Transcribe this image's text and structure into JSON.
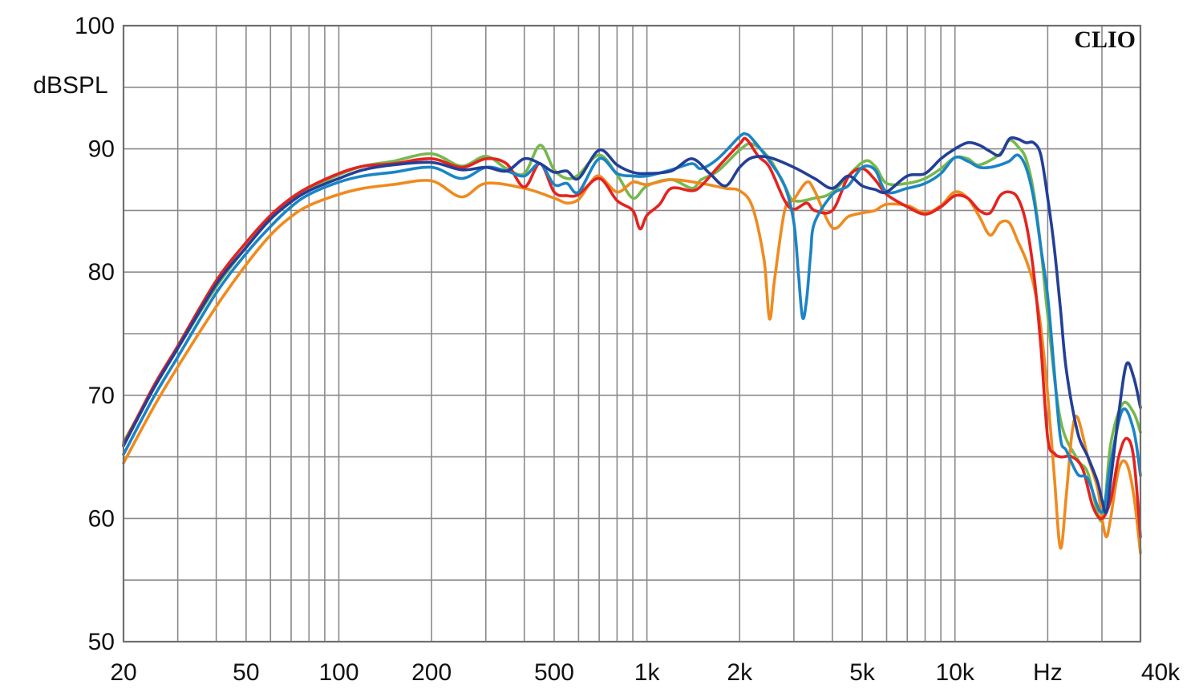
{
  "watermark": "CLIO",
  "chart_data": {
    "type": "line",
    "title": "",
    "xlabel": "",
    "ylabel": "dBSPL",
    "x_scale": "log",
    "xlim": [
      20,
      40000
    ],
    "ylim": [
      50,
      100
    ],
    "grid": true,
    "y_ticks": [
      50,
      60,
      70,
      80,
      90,
      100
    ],
    "y_tick_labels": [
      "50",
      "60",
      "70",
      "80",
      "90",
      "100"
    ],
    "x_tick_values": [
      20,
      50,
      100,
      200,
      500,
      1000,
      2000,
      5000,
      10000,
      20000,
      40000
    ],
    "x_tick_labels": [
      "20",
      "50",
      "100",
      "200",
      "500",
      "1k",
      "2k",
      "5k",
      "10k",
      "Hz",
      "40k"
    ],
    "series": [
      {
        "color": "#77b84e",
        "x": [
          20,
          25,
          30,
          40,
          50,
          60,
          70,
          80,
          100,
          120,
          150,
          200,
          250,
          300,
          350,
          400,
          450,
          500,
          550,
          600,
          700,
          800,
          900,
          1000,
          1200,
          1400,
          1500,
          1700,
          2000,
          2200,
          2500,
          2800,
          3000,
          3500,
          4000,
          5000,
          5500,
          6000,
          7000,
          8000,
          9000,
          10000,
          11000,
          12000,
          14000,
          15000,
          16000,
          17000,
          18000,
          19000,
          20000,
          22000,
          25000,
          27000,
          30000,
          32000,
          35000,
          38000,
          40000
        ],
        "values": [
          66.2,
          70.5,
          73.8,
          78.8,
          82.0,
          84.3,
          85.7,
          86.7,
          87.9,
          88.6,
          89.0,
          89.6,
          88.6,
          89.4,
          88.4,
          88.0,
          90.3,
          88.3,
          87.6,
          87.9,
          89.5,
          87.9,
          86.0,
          87.0,
          87.5,
          86.8,
          87.5,
          88.2,
          89.9,
          90.4,
          89.2,
          87.0,
          85.8,
          86.0,
          86.5,
          88.9,
          88.6,
          87.2,
          87.2,
          87.6,
          88.4,
          89.3,
          89.2,
          88.7,
          89.6,
          90.7,
          90.2,
          89.2,
          86.5,
          82.0,
          76.5,
          68.0,
          64.8,
          63.7,
          59.8,
          66.0,
          69.3,
          68.6,
          67.0
        ]
      },
      {
        "color": "#ef8b1f",
        "x": [
          20,
          25,
          30,
          40,
          50,
          60,
          70,
          80,
          100,
          120,
          150,
          200,
          250,
          300,
          400,
          500,
          550,
          600,
          650,
          700,
          800,
          900,
          1000,
          1200,
          1500,
          1800,
          2000,
          2200,
          2400,
          2500,
          2600,
          2800,
          3000,
          3300,
          3500,
          4000,
          4500,
          5000,
          5500,
          6000,
          7000,
          8000,
          9000,
          10000,
          11000,
          12000,
          13000,
          14000,
          15000,
          16000,
          17000,
          18000,
          19000,
          20000,
          21000,
          22000,
          23000,
          24000,
          25000,
          27000,
          29000,
          30000,
          31000,
          32000,
          34000,
          36000,
          38000,
          40000
        ],
        "values": [
          64.5,
          69.0,
          72.3,
          77.2,
          80.6,
          83.0,
          84.5,
          85.4,
          86.3,
          86.8,
          87.1,
          87.4,
          86.1,
          87.2,
          86.8,
          86.0,
          85.6,
          85.9,
          87.1,
          87.8,
          86.5,
          87.3,
          87.1,
          87.5,
          87.2,
          86.8,
          86.6,
          85.3,
          81.0,
          76.2,
          79.5,
          85.0,
          85.9,
          87.3,
          86.6,
          83.6,
          84.5,
          84.8,
          85.0,
          85.5,
          85.4,
          84.8,
          85.4,
          86.5,
          86.0,
          84.5,
          83.0,
          84.0,
          84.0,
          82.5,
          81.0,
          79.0,
          75.5,
          70.0,
          63.5,
          57.6,
          62.0,
          67.0,
          68.2,
          65.0,
          62.5,
          60.0,
          58.5,
          60.0,
          64.0,
          64.5,
          62.0,
          57.2
        ]
      },
      {
        "color": "#e4231f",
        "x": [
          20,
          25,
          30,
          40,
          50,
          60,
          70,
          80,
          100,
          120,
          150,
          200,
          250,
          300,
          350,
          400,
          450,
          500,
          550,
          600,
          700,
          800,
          900,
          950,
          1000,
          1100,
          1200,
          1400,
          1500,
          1700,
          2000,
          2100,
          2300,
          2500,
          2800,
          3000,
          3300,
          3500,
          4000,
          4500,
          5000,
          5500,
          6000,
          7000,
          8000,
          9000,
          10000,
          11000,
          12000,
          13000,
          14000,
          15000,
          16000,
          17000,
          18000,
          19000,
          20000,
          21000,
          22000,
          24000,
          26000,
          28000,
          30000,
          32000,
          34000,
          36000,
          38000,
          40000
        ],
        "values": [
          66.0,
          70.7,
          74.0,
          79.3,
          82.4,
          84.6,
          86.0,
          86.9,
          88.0,
          88.6,
          88.8,
          89.2,
          88.5,
          89.2,
          88.8,
          86.9,
          88.8,
          86.5,
          86.2,
          86.3,
          87.6,
          85.8,
          85.0,
          83.5,
          84.6,
          85.5,
          86.8,
          86.6,
          87.0,
          88.5,
          90.4,
          90.8,
          89.4,
          88.5,
          85.8,
          85.1,
          85.6,
          85.0,
          85.0,
          87.7,
          88.4,
          87.5,
          86.3,
          85.3,
          84.7,
          85.3,
          86.2,
          86.0,
          85.0,
          84.8,
          86.2,
          86.5,
          86.0,
          84.0,
          80.0,
          74.0,
          66.5,
          65.3,
          65.0,
          65.0,
          64.0,
          61.0,
          60.0,
          61.5,
          65.0,
          66.5,
          65.0,
          58.5
        ]
      },
      {
        "color": "#1b84c5",
        "x": [
          20,
          25,
          30,
          40,
          50,
          60,
          70,
          80,
          100,
          120,
          150,
          200,
          250,
          300,
          350,
          400,
          450,
          500,
          550,
          600,
          700,
          800,
          900,
          1000,
          1200,
          1400,
          1500,
          1700,
          2000,
          2100,
          2200,
          2500,
          2800,
          3000,
          3100,
          3200,
          3300,
          3400,
          3500,
          4000,
          4500,
          5000,
          5500,
          6000,
          7000,
          8000,
          9000,
          10000,
          11000,
          12000,
          13000,
          14000,
          15000,
          16000,
          17000,
          18000,
          19000,
          20000,
          21000,
          22000,
          23000,
          25000,
          27000,
          30000,
          32000,
          35000,
          38000,
          40000
        ],
        "values": [
          65.2,
          69.8,
          73.1,
          78.3,
          81.5,
          83.7,
          85.3,
          86.3,
          87.3,
          87.8,
          88.1,
          88.5,
          87.6,
          88.5,
          88.2,
          87.8,
          88.8,
          87.1,
          87.2,
          86.5,
          89.2,
          88.0,
          87.8,
          87.8,
          88.3,
          88.8,
          88.4,
          89.2,
          91.0,
          91.2,
          90.8,
          89.0,
          87.0,
          84.0,
          80.0,
          76.3,
          77.8,
          81.5,
          84.0,
          86.3,
          87.0,
          88.5,
          88.3,
          86.5,
          86.8,
          87.2,
          88.0,
          89.3,
          89.0,
          88.5,
          88.5,
          88.7,
          89.0,
          89.5,
          88.5,
          86.0,
          82.0,
          78.0,
          72.0,
          66.5,
          65.5,
          63.6,
          63.2,
          60.5,
          64.5,
          68.8,
          67.2,
          63.5
        ]
      },
      {
        "color": "#233f97",
        "x": [
          20,
          25,
          30,
          40,
          50,
          60,
          70,
          80,
          100,
          120,
          150,
          200,
          250,
          300,
          350,
          400,
          450,
          500,
          550,
          600,
          700,
          800,
          900,
          1000,
          1200,
          1400,
          1600,
          1800,
          2000,
          2200,
          2500,
          3000,
          3500,
          4000,
          4500,
          5000,
          5500,
          6000,
          7000,
          8000,
          9000,
          10000,
          11000,
          12000,
          13000,
          14000,
          15000,
          16000,
          17000,
          18000,
          19000,
          20000,
          21000,
          22000,
          23000,
          25000,
          27000,
          29000,
          30000,
          31000,
          32000,
          34000,
          36000,
          38000,
          40000
        ],
        "values": [
          65.9,
          70.5,
          73.8,
          79.0,
          82.0,
          84.3,
          85.7,
          86.6,
          87.6,
          88.3,
          88.7,
          88.9,
          88.3,
          88.5,
          88.2,
          89.2,
          88.8,
          88.1,
          88.2,
          87.6,
          89.9,
          88.7,
          88.1,
          88.0,
          88.2,
          89.2,
          88.0,
          87.0,
          88.5,
          89.3,
          89.3,
          88.5,
          87.6,
          86.8,
          87.8,
          87.0,
          86.7,
          86.5,
          87.8,
          88.0,
          89.2,
          90.0,
          90.5,
          90.3,
          89.8,
          89.5,
          90.8,
          90.8,
          90.5,
          90.5,
          89.5,
          86.0,
          82.0,
          77.0,
          72.0,
          67.0,
          65.0,
          63.0,
          61.5,
          60.5,
          63.0,
          68.5,
          72.5,
          71.5,
          69.0
        ]
      }
    ]
  }
}
